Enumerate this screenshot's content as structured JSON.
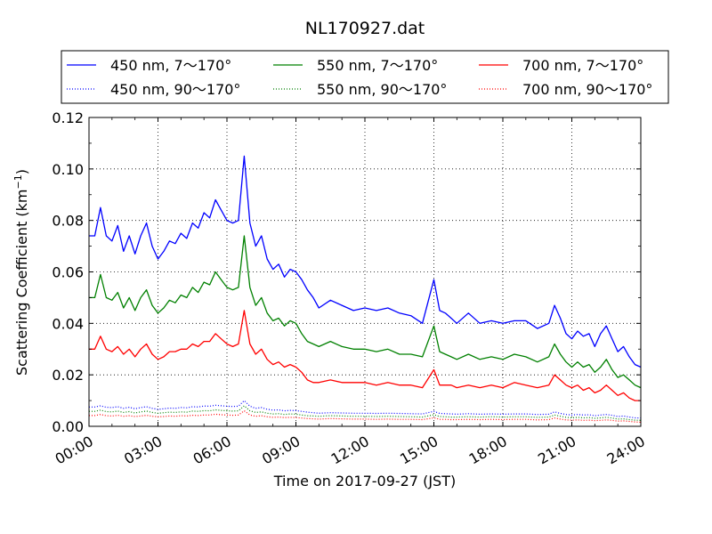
{
  "chart_data": {
    "type": "line",
    "title": "NL170927.dat",
    "xlabel": "Time on 2017-09-27 (JST)",
    "ylabel": "Scattering Coefficient (km",
    "ylabel_sup": "−1",
    "ylabel_close": ")",
    "xlim": [
      0,
      24
    ],
    "ylim": [
      0,
      0.12
    ],
    "grid": true,
    "legend_position": "top",
    "x_ticks": [
      {
        "value": 0,
        "label": "00:00"
      },
      {
        "value": 3,
        "label": "03:00"
      },
      {
        "value": 6,
        "label": "06:00"
      },
      {
        "value": 9,
        "label": "09:00"
      },
      {
        "value": 12,
        "label": "12:00"
      },
      {
        "value": 15,
        "label": "15:00"
      },
      {
        "value": 18,
        "label": "18:00"
      },
      {
        "value": 21,
        "label": "21:00"
      },
      {
        "value": 24,
        "label": "24:00"
      }
    ],
    "y_ticks": [
      {
        "value": 0,
        "label": "0.00"
      },
      {
        "value": 0.02,
        "label": "0.02"
      },
      {
        "value": 0.04,
        "label": "0.04"
      },
      {
        "value": 0.06,
        "label": "0.06"
      },
      {
        "value": 0.08,
        "label": "0.08"
      },
      {
        "value": 0.1,
        "label": "0.10"
      },
      {
        "value": 0.12,
        "label": "0.12"
      }
    ],
    "x": [
      0,
      0.25,
      0.5,
      0.75,
      1,
      1.25,
      1.5,
      1.75,
      2,
      2.25,
      2.5,
      2.75,
      3,
      3.25,
      3.5,
      3.75,
      4,
      4.25,
      4.5,
      4.75,
      5,
      5.25,
      5.5,
      5.75,
      6,
      6.25,
      6.5,
      6.75,
      7,
      7.25,
      7.5,
      7.75,
      8,
      8.25,
      8.5,
      8.75,
      9,
      9.25,
      9.5,
      9.75,
      10,
      10.5,
      11,
      11.5,
      12,
      12.5,
      13,
      13.5,
      14,
      14.5,
      15,
      15.25,
      15.5,
      15.75,
      16,
      16.5,
      17,
      17.5,
      18,
      18.5,
      19,
      19.5,
      20,
      20.25,
      20.5,
      20.75,
      21,
      21.25,
      21.5,
      21.75,
      22,
      22.25,
      22.5,
      22.75,
      23,
      23.25,
      23.5,
      23.75,
      24
    ],
    "series": [
      {
        "name": "450 nm, 7～170°",
        "color": "#0000ff",
        "style": "solid",
        "values": [
          0.074,
          0.074,
          0.085,
          0.074,
          0.072,
          0.078,
          0.068,
          0.074,
          0.067,
          0.074,
          0.079,
          0.07,
          0.065,
          0.068,
          0.072,
          0.071,
          0.075,
          0.073,
          0.079,
          0.077,
          0.083,
          0.081,
          0.088,
          0.084,
          0.08,
          0.079,
          0.08,
          0.105,
          0.079,
          0.07,
          0.074,
          0.065,
          0.061,
          0.063,
          0.058,
          0.061,
          0.06,
          0.057,
          0.053,
          0.05,
          0.046,
          0.049,
          0.047,
          0.045,
          0.046,
          0.045,
          0.046,
          0.044,
          0.043,
          0.04,
          0.057,
          0.045,
          0.044,
          0.042,
          0.04,
          0.044,
          0.04,
          0.041,
          0.04,
          0.041,
          0.041,
          0.038,
          0.04,
          0.047,
          0.042,
          0.036,
          0.034,
          0.037,
          0.035,
          0.036,
          0.031,
          0.036,
          0.039,
          0.034,
          0.029,
          0.031,
          0.027,
          0.024,
          0.023
        ]
      },
      {
        "name": "550 nm, 7～170°",
        "color": "#008000",
        "style": "solid",
        "values": [
          0.05,
          0.05,
          0.059,
          0.05,
          0.049,
          0.052,
          0.046,
          0.05,
          0.045,
          0.05,
          0.053,
          0.047,
          0.044,
          0.046,
          0.049,
          0.048,
          0.051,
          0.05,
          0.054,
          0.052,
          0.056,
          0.055,
          0.06,
          0.057,
          0.054,
          0.053,
          0.054,
          0.074,
          0.054,
          0.047,
          0.05,
          0.044,
          0.041,
          0.042,
          0.039,
          0.041,
          0.04,
          0.036,
          0.033,
          0.032,
          0.031,
          0.033,
          0.031,
          0.03,
          0.03,
          0.029,
          0.03,
          0.028,
          0.028,
          0.027,
          0.039,
          0.029,
          0.028,
          0.027,
          0.026,
          0.028,
          0.026,
          0.027,
          0.026,
          0.028,
          0.027,
          0.025,
          0.027,
          0.032,
          0.028,
          0.025,
          0.023,
          0.025,
          0.023,
          0.024,
          0.021,
          0.023,
          0.026,
          0.022,
          0.019,
          0.02,
          0.018,
          0.016,
          0.015
        ]
      },
      {
        "name": "700 nm, 7～170°",
        "color": "#ff0000",
        "style": "solid",
        "values": [
          0.03,
          0.03,
          0.035,
          0.03,
          0.029,
          0.031,
          0.028,
          0.03,
          0.027,
          0.03,
          0.032,
          0.028,
          0.026,
          0.027,
          0.029,
          0.029,
          0.03,
          0.03,
          0.032,
          0.031,
          0.033,
          0.033,
          0.036,
          0.034,
          0.032,
          0.031,
          0.032,
          0.045,
          0.032,
          0.028,
          0.03,
          0.026,
          0.024,
          0.025,
          0.023,
          0.024,
          0.023,
          0.021,
          0.018,
          0.017,
          0.017,
          0.018,
          0.017,
          0.017,
          0.017,
          0.016,
          0.017,
          0.016,
          0.016,
          0.015,
          0.022,
          0.016,
          0.016,
          0.016,
          0.015,
          0.016,
          0.015,
          0.016,
          0.015,
          0.017,
          0.016,
          0.015,
          0.016,
          0.02,
          0.018,
          0.016,
          0.015,
          0.016,
          0.014,
          0.015,
          0.013,
          0.014,
          0.016,
          0.014,
          0.012,
          0.013,
          0.011,
          0.01,
          0.01
        ]
      },
      {
        "name": "450 nm, 90～170°",
        "color": "#0000ff",
        "style": "dotted",
        "values": [
          0.0075,
          0.0075,
          0.008,
          0.0074,
          0.0073,
          0.0076,
          0.007,
          0.0074,
          0.0068,
          0.0073,
          0.0076,
          0.007,
          0.0066,
          0.0068,
          0.0071,
          0.007,
          0.0073,
          0.0072,
          0.0076,
          0.0075,
          0.0079,
          0.0078,
          0.0082,
          0.008,
          0.0078,
          0.0077,
          0.0078,
          0.01,
          0.0078,
          0.007,
          0.0073,
          0.0066,
          0.0063,
          0.0064,
          0.006,
          0.0062,
          0.0061,
          0.0058,
          0.0055,
          0.0053,
          0.0051,
          0.0053,
          0.0052,
          0.0051,
          0.0051,
          0.005,
          0.0051,
          0.005,
          0.0049,
          0.0048,
          0.0058,
          0.005,
          0.0049,
          0.0048,
          0.0047,
          0.0049,
          0.0047,
          0.0048,
          0.0047,
          0.0048,
          0.0048,
          0.0046,
          0.0047,
          0.0056,
          0.005,
          0.0046,
          0.0044,
          0.0046,
          0.0044,
          0.0045,
          0.0041,
          0.0044,
          0.0046,
          0.0043,
          0.0038,
          0.004,
          0.0036,
          0.0033,
          0.0032
        ]
      },
      {
        "name": "550 nm, 90～170°",
        "color": "#008000",
        "style": "dotted",
        "values": [
          0.0058,
          0.0058,
          0.0063,
          0.0057,
          0.0056,
          0.0059,
          0.0054,
          0.0057,
          0.0052,
          0.0056,
          0.0059,
          0.0054,
          0.0051,
          0.0053,
          0.0055,
          0.0054,
          0.0056,
          0.0055,
          0.0059,
          0.0058,
          0.0061,
          0.006,
          0.0064,
          0.0062,
          0.006,
          0.0059,
          0.006,
          0.008,
          0.006,
          0.0054,
          0.0056,
          0.0051,
          0.0048,
          0.0049,
          0.0046,
          0.0048,
          0.0047,
          0.0044,
          0.0041,
          0.004,
          0.0039,
          0.0041,
          0.004,
          0.0039,
          0.0039,
          0.0038,
          0.0039,
          0.0038,
          0.0037,
          0.0036,
          0.0045,
          0.0038,
          0.0037,
          0.0036,
          0.0036,
          0.0037,
          0.0036,
          0.0037,
          0.0036,
          0.0037,
          0.0037,
          0.0035,
          0.0036,
          0.0044,
          0.0039,
          0.0035,
          0.0033,
          0.0035,
          0.0033,
          0.0034,
          0.0031,
          0.0033,
          0.0035,
          0.0032,
          0.0028,
          0.0029,
          0.0026,
          0.0024,
          0.0023
        ]
      },
      {
        "name": "700 nm, 90～170°",
        "color": "#ff0000",
        "style": "dotted",
        "values": [
          0.0042,
          0.0042,
          0.0046,
          0.0041,
          0.004,
          0.0043,
          0.0039,
          0.0041,
          0.0038,
          0.004,
          0.0043,
          0.0039,
          0.0037,
          0.0038,
          0.004,
          0.0039,
          0.0041,
          0.004,
          0.0043,
          0.0042,
          0.0044,
          0.0044,
          0.0047,
          0.0045,
          0.0044,
          0.0043,
          0.0044,
          0.006,
          0.0044,
          0.0039,
          0.0041,
          0.0037,
          0.0035,
          0.0036,
          0.0034,
          0.0035,
          0.0034,
          0.0032,
          0.003,
          0.0029,
          0.0028,
          0.003,
          0.0029,
          0.0028,
          0.0028,
          0.0027,
          0.0028,
          0.0027,
          0.0027,
          0.0026,
          0.0033,
          0.0027,
          0.0027,
          0.0026,
          0.0026,
          0.0027,
          0.0026,
          0.0027,
          0.0026,
          0.0027,
          0.0027,
          0.0025,
          0.0026,
          0.0032,
          0.0028,
          0.0025,
          0.0024,
          0.0025,
          0.0023,
          0.0024,
          0.0022,
          0.0023,
          0.0025,
          0.0023,
          0.002,
          0.0021,
          0.0019,
          0.0017,
          0.0016
        ]
      }
    ],
    "legend_rows": [
      [
        "450 nm, 7～170°",
        "550 nm, 7～170°",
        "700 nm, 7～170°"
      ],
      [
        "450 nm, 90～170°",
        "550 nm, 90～170°",
        "700 nm, 90～170°"
      ]
    ]
  }
}
